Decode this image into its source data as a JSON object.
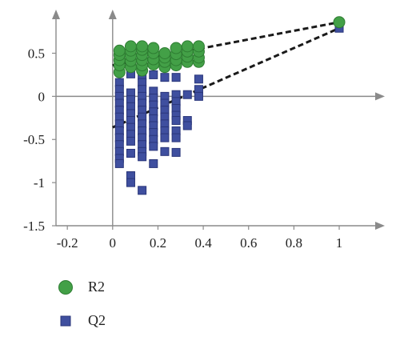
{
  "chart_data": {
    "type": "scatter",
    "xlim": [
      -0.25,
      1.18
    ],
    "ylim": [
      -1.5,
      0.95
    ],
    "grid": false,
    "legend_placement": "bottom-left",
    "xticks": [
      "-0.2",
      "0",
      "0.2",
      "0.4",
      "0.6",
      "0.8",
      "1"
    ],
    "xtick_values": [
      -0.2,
      0,
      0.2,
      0.4,
      0.6,
      0.8,
      1.0
    ],
    "yticks": [
      "0.5",
      "0",
      "-0.5",
      "-1",
      "-1.5"
    ],
    "ytick_values": [
      0.5,
      0,
      -0.5,
      -1,
      -1.5
    ],
    "series": [
      {
        "name": "R2",
        "marker": "circle",
        "color": "#43a047",
        "edge": "#2e7d32",
        "points": [
          [
            0.03,
            0.28
          ],
          [
            0.03,
            0.36
          ],
          [
            0.03,
            0.42
          ],
          [
            0.03,
            0.48
          ],
          [
            0.03,
            0.53
          ],
          [
            0.08,
            0.34
          ],
          [
            0.08,
            0.41
          ],
          [
            0.08,
            0.47
          ],
          [
            0.08,
            0.53
          ],
          [
            0.08,
            0.58
          ],
          [
            0.13,
            0.3
          ],
          [
            0.13,
            0.36
          ],
          [
            0.13,
            0.42
          ],
          [
            0.13,
            0.48
          ],
          [
            0.13,
            0.54
          ],
          [
            0.13,
            0.58
          ],
          [
            0.18,
            0.37
          ],
          [
            0.18,
            0.43
          ],
          [
            0.18,
            0.5
          ],
          [
            0.18,
            0.56
          ],
          [
            0.23,
            0.34
          ],
          [
            0.23,
            0.4
          ],
          [
            0.23,
            0.45
          ],
          [
            0.23,
            0.5
          ],
          [
            0.28,
            0.36
          ],
          [
            0.28,
            0.42
          ],
          [
            0.28,
            0.49
          ],
          [
            0.28,
            0.56
          ],
          [
            0.33,
            0.4
          ],
          [
            0.33,
            0.46
          ],
          [
            0.33,
            0.52
          ],
          [
            0.33,
            0.58
          ],
          [
            0.38,
            0.4
          ],
          [
            0.38,
            0.45
          ],
          [
            0.38,
            0.52
          ],
          [
            0.38,
            0.58
          ],
          [
            1.0,
            0.86
          ]
        ]
      },
      {
        "name": "Q2",
        "marker": "square",
        "color": "#3f4f9f",
        "edge": "#2a367a",
        "points": [
          [
            0.03,
            0.16
          ],
          [
            0.03,
            0.08
          ],
          [
            0.03,
            0.0
          ],
          [
            0.03,
            -0.08
          ],
          [
            0.03,
            -0.16
          ],
          [
            0.03,
            -0.24
          ],
          [
            0.03,
            -0.32
          ],
          [
            0.03,
            -0.4
          ],
          [
            0.03,
            -0.48
          ],
          [
            0.03,
            -0.56
          ],
          [
            0.03,
            -0.64
          ],
          [
            0.03,
            -0.72
          ],
          [
            0.03,
            -0.78
          ],
          [
            0.08,
            0.26
          ],
          [
            0.08,
            0.04
          ],
          [
            0.08,
            -0.04
          ],
          [
            0.08,
            -0.12
          ],
          [
            0.08,
            -0.2
          ],
          [
            0.08,
            -0.28
          ],
          [
            0.08,
            -0.36
          ],
          [
            0.08,
            -0.44
          ],
          [
            0.08,
            -0.52
          ],
          [
            0.08,
            -0.66
          ],
          [
            0.08,
            -0.92
          ],
          [
            0.08,
            -1.0
          ],
          [
            0.13,
            0.24
          ],
          [
            0.13,
            0.16
          ],
          [
            0.13,
            0.08
          ],
          [
            0.13,
            0.0
          ],
          [
            0.13,
            -0.08
          ],
          [
            0.13,
            -0.16
          ],
          [
            0.13,
            -0.24
          ],
          [
            0.13,
            -0.32
          ],
          [
            0.13,
            -0.4
          ],
          [
            0.13,
            -0.48
          ],
          [
            0.13,
            -0.56
          ],
          [
            0.13,
            -0.64
          ],
          [
            0.13,
            -0.7
          ],
          [
            0.13,
            -1.09
          ],
          [
            0.18,
            0.25
          ],
          [
            0.18,
            0.06
          ],
          [
            0.18,
            -0.02
          ],
          [
            0.18,
            -0.1
          ],
          [
            0.18,
            -0.18
          ],
          [
            0.18,
            -0.26
          ],
          [
            0.18,
            -0.34
          ],
          [
            0.18,
            -0.42
          ],
          [
            0.18,
            -0.5
          ],
          [
            0.18,
            -0.58
          ],
          [
            0.18,
            -0.78
          ],
          [
            0.23,
            0.22
          ],
          [
            0.23,
            0.0
          ],
          [
            0.23,
            -0.08
          ],
          [
            0.23,
            -0.16
          ],
          [
            0.23,
            -0.24
          ],
          [
            0.23,
            -0.32
          ],
          [
            0.23,
            -0.4
          ],
          [
            0.23,
            -0.48
          ],
          [
            0.23,
            -0.64
          ],
          [
            0.28,
            0.22
          ],
          [
            0.28,
            0.02
          ],
          [
            0.28,
            -0.06
          ],
          [
            0.28,
            -0.14
          ],
          [
            0.28,
            -0.22
          ],
          [
            0.28,
            -0.28
          ],
          [
            0.28,
            -0.4
          ],
          [
            0.28,
            -0.48
          ],
          [
            0.28,
            -0.65
          ],
          [
            0.33,
            0.02
          ],
          [
            0.33,
            -0.28
          ],
          [
            0.33,
            -0.34
          ],
          [
            0.38,
            0.2
          ],
          [
            0.38,
            0.08
          ],
          [
            0.38,
            0.0
          ],
          [
            1.0,
            0.79
          ]
        ]
      }
    ],
    "regression_lines": [
      {
        "name": "R2",
        "x": [
          0,
          1.0
        ],
        "y": [
          0.36,
          0.86
        ]
      },
      {
        "name": "Q2",
        "x": [
          0,
          1.0
        ],
        "y": [
          -0.36,
          0.79
        ]
      }
    ]
  },
  "legend": {
    "items": [
      {
        "label": "R2",
        "marker": "circle",
        "color": "#43a047"
      },
      {
        "label": "Q2",
        "marker": "square",
        "color": "#3f4f9f"
      }
    ]
  }
}
